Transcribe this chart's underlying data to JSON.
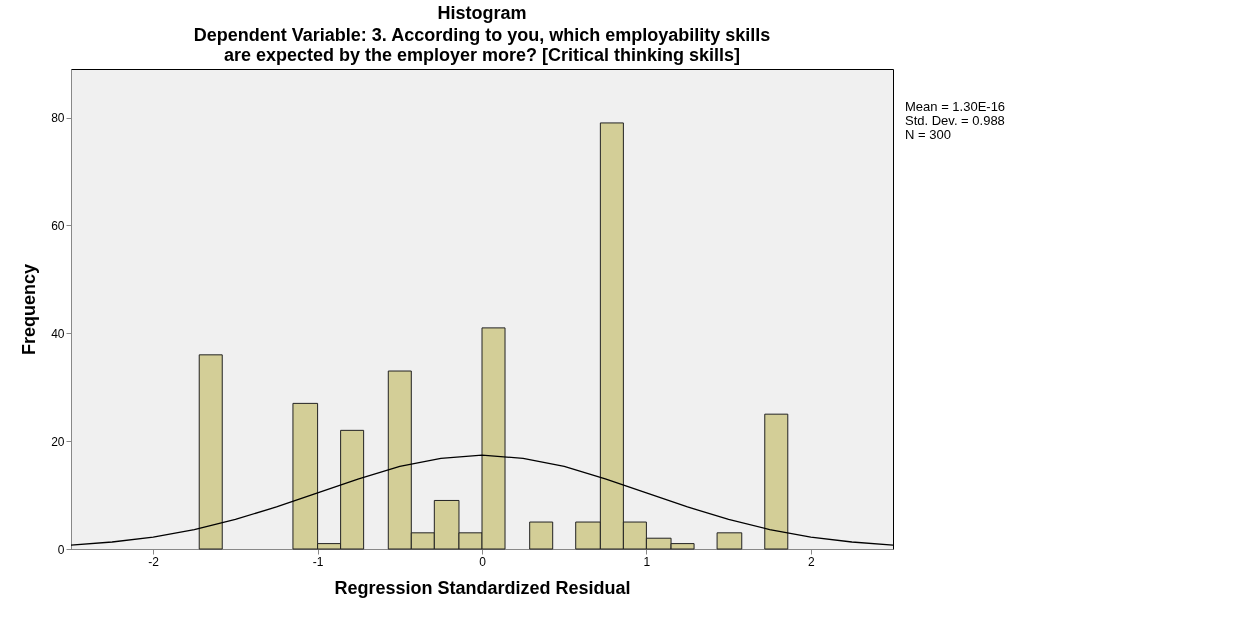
{
  "chart_data": {
    "type": "histogram",
    "title": "Histogram",
    "subtitle": "Dependent Variable: 3. According to you, which employability skills are expected by the employer more?   [Critical thinking skills]",
    "xlabel": "Regression Standardized Residual",
    "ylabel": "Frequency",
    "bins": [
      -1.72,
      -1.58,
      -1.15,
      -1.0,
      -0.86,
      -0.72,
      -0.57,
      -0.43,
      -0.29,
      -0.14,
      0.0,
      0.14,
      0.29,
      0.43,
      0.57,
      0.72,
      0.86,
      1.0,
      1.15,
      1.29,
      1.43,
      1.58,
      1.72,
      1.86
    ],
    "values": [
      36,
      0,
      27,
      1,
      22,
      0,
      33,
      3,
      9,
      3,
      41,
      0,
      5,
      0,
      5,
      79,
      5,
      2,
      1,
      0,
      3,
      0,
      25
    ],
    "color": "#d3ce97",
    "series": [
      {
        "type": "line",
        "color": "#000000",
        "x": [
          -2.5,
          -2.25,
          -2.0,
          -1.75,
          -1.5,
          -1.25,
          -1.0,
          -0.75,
          -0.5,
          -0.25,
          0.0,
          0.25,
          0.5,
          0.75,
          1.0,
          1.25,
          1.5,
          1.75,
          2.0,
          2.25,
          2.5
        ],
        "values": [
          0.7,
          1.3,
          2.2,
          3.6,
          5.5,
          7.8,
          10.4,
          13.0,
          15.3,
          16.8,
          17.4,
          16.8,
          15.3,
          13.0,
          10.4,
          7.8,
          5.5,
          3.6,
          2.2,
          1.3,
          0.7
        ]
      }
    ],
    "xlim": [
      -2.5,
      2.5
    ],
    "xticks": [
      -2,
      -1,
      0,
      1,
      2
    ],
    "ylim": [
      0,
      89
    ],
    "yticks": [
      0,
      20,
      40,
      60,
      80
    ],
    "annotations": [
      "Mean = 1.30E-16",
      "Std. Dev. = 0.988",
      "N = 300"
    ]
  }
}
